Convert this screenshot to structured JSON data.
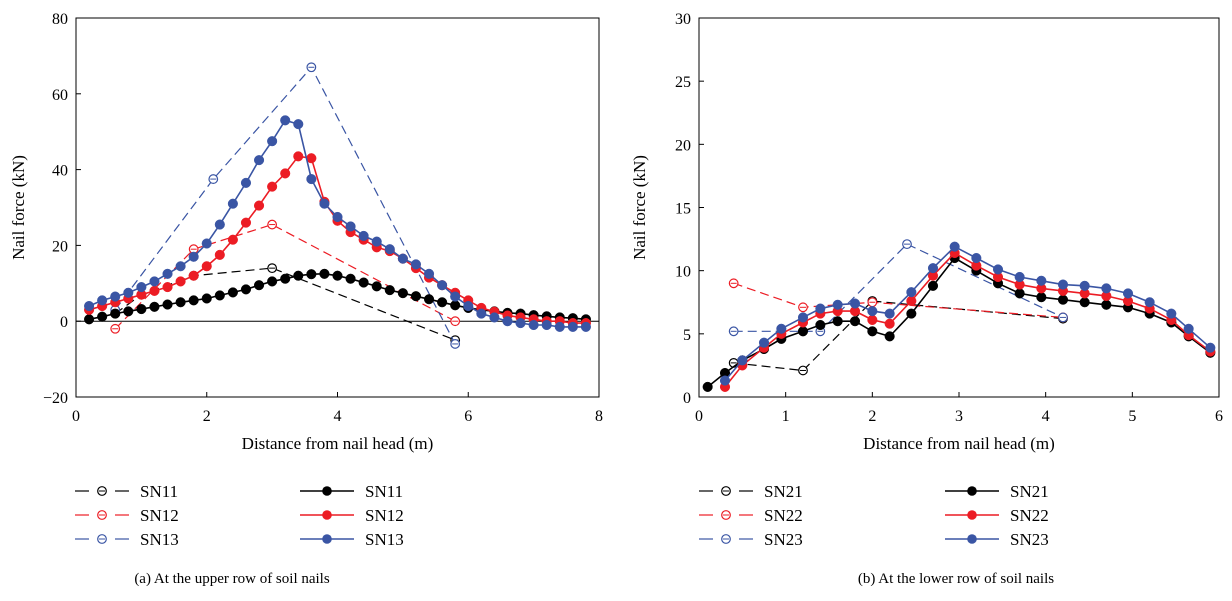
{
  "chart_data": [
    {
      "type": "line",
      "caption": "(a)  At the upper row of soil nails",
      "xlabel": "Distance from nail head (m)",
      "ylabel": "Nail force (kN)",
      "xlim": [
        0,
        8
      ],
      "ylim": [
        -20,
        80
      ],
      "xticks": [
        0,
        2,
        4,
        6,
        8
      ],
      "yticks": [
        -20,
        0,
        20,
        40,
        60,
        80
      ],
      "zero_line": true,
      "legend_placement": "below",
      "series": [
        {
          "name": "SN11",
          "style": "dashed-open",
          "color": "#000000",
          "x": [
            0.6,
            1.0,
            1.8,
            3.0,
            5.8
          ],
          "y": [
            2,
            7,
            12,
            14,
            -5
          ]
        },
        {
          "name": "SN12",
          "style": "dashed-open",
          "color": "#ec1c24",
          "x": [
            0.6,
            1.8,
            3.0,
            5.8
          ],
          "y": [
            -2,
            19,
            25.5,
            0
          ]
        },
        {
          "name": "SN13",
          "style": "dashed-open",
          "color": "#3a55a4",
          "x": [
            0.6,
            2.1,
            3.6,
            5.8
          ],
          "y": [
            3,
            37.5,
            67,
            -6
          ]
        },
        {
          "name": "SN11",
          "style": "solid-filled",
          "color": "#000000",
          "x": [
            0.2,
            0.4,
            0.6,
            0.8,
            1.0,
            1.2,
            1.4,
            1.6,
            1.8,
            2.0,
            2.2,
            2.4,
            2.6,
            2.8,
            3.0,
            3.2,
            3.4,
            3.6,
            3.8,
            4.0,
            4.2,
            4.4,
            4.6,
            4.8,
            5.0,
            5.2,
            5.4,
            5.6,
            5.8,
            6.0,
            6.2,
            6.4,
            6.6,
            6.8,
            7.0,
            7.2,
            7.4,
            7.6,
            7.8
          ],
          "y": [
            0.5,
            1.2,
            2,
            2.6,
            3.2,
            3.8,
            4.4,
            5,
            5.5,
            6,
            6.8,
            7.6,
            8.4,
            9.5,
            10.5,
            11.2,
            12,
            12.4,
            12.5,
            12,
            11.2,
            10.2,
            9.2,
            8.2,
            7.4,
            6.6,
            5.8,
            5,
            4.2,
            3.5,
            3,
            2.6,
            2.2,
            2,
            1.6,
            1.3,
            1,
            0.8,
            0.5
          ]
        },
        {
          "name": "SN12",
          "style": "solid-filled",
          "color": "#ec1c24",
          "x": [
            0.2,
            0.4,
            0.6,
            0.8,
            1.0,
            1.2,
            1.4,
            1.6,
            1.8,
            2.0,
            2.2,
            2.4,
            2.6,
            2.8,
            3.0,
            3.2,
            3.4,
            3.6,
            3.8,
            4.0,
            4.2,
            4.4,
            4.6,
            4.8,
            5.0,
            5.2,
            5.4,
            5.6,
            5.8,
            6.0,
            6.2,
            6.4,
            6.6,
            6.8,
            7.0,
            7.2,
            7.4,
            7.6,
            7.8
          ],
          "y": [
            3,
            4,
            5,
            6,
            7,
            8,
            9,
            10.5,
            12,
            14.5,
            17.5,
            21.5,
            26,
            30.5,
            35.5,
            39,
            43.5,
            43,
            31.5,
            26.5,
            23.5,
            21.5,
            19.5,
            18.5,
            16.5,
            14,
            11.5,
            9.5,
            7.5,
            5.5,
            3.5,
            2.5,
            1.5,
            1,
            0.5,
            0,
            0,
            -0.5,
            -0.5
          ]
        },
        {
          "name": "SN13",
          "style": "solid-filled",
          "color": "#3a55a4",
          "x": [
            0.2,
            0.4,
            0.6,
            0.8,
            1.0,
            1.2,
            1.4,
            1.6,
            1.8,
            2.0,
            2.2,
            2.4,
            2.6,
            2.8,
            3.0,
            3.2,
            3.4,
            3.6,
            3.8,
            4.0,
            4.2,
            4.4,
            4.6,
            4.8,
            5.0,
            5.2,
            5.4,
            5.6,
            5.8,
            6.0,
            6.2,
            6.4,
            6.6,
            6.8,
            7.0,
            7.2,
            7.4,
            7.6,
            7.8
          ],
          "y": [
            4,
            5.5,
            6.5,
            7.5,
            9,
            10.5,
            12.5,
            14.5,
            17,
            20.5,
            25.5,
            31,
            36.5,
            42.5,
            47.5,
            53,
            52,
            37.5,
            31,
            27.5,
            25,
            22.5,
            21,
            19,
            16.5,
            15,
            12.5,
            9.5,
            6.5,
            4,
            2,
            1,
            0,
            -0.5,
            -1,
            -1,
            -1.5,
            -1.5,
            -1.5
          ]
        }
      ]
    },
    {
      "type": "line",
      "caption": "(b)  At the lower row of soil nails",
      "xlabel": "Distance from nail head (m)",
      "ylabel": "Nail force (kN)",
      "xlim": [
        0,
        6
      ],
      "ylim": [
        0,
        30
      ],
      "xticks": [
        0,
        1,
        2,
        3,
        4,
        5,
        6
      ],
      "yticks": [
        0,
        5,
        10,
        15,
        20,
        25,
        30
      ],
      "zero_line": false,
      "legend_placement": "below",
      "series": [
        {
          "name": "SN21",
          "style": "dashed-open",
          "color": "#000000",
          "x": [
            0.4,
            1.2,
            2.0,
            4.2
          ],
          "y": [
            2.7,
            2.1,
            7.6,
            6.2
          ]
        },
        {
          "name": "SN22",
          "style": "dashed-open",
          "color": "#ec1c24",
          "x": [
            0.4,
            1.2,
            2.0,
            4.2
          ],
          "y": [
            9.0,
            7.1,
            7.5,
            6.3
          ]
        },
        {
          "name": "SN23",
          "style": "dashed-open",
          "color": "#3a55a4",
          "x": [
            0.4,
            1.4,
            2.4,
            4.2
          ],
          "y": [
            5.2,
            5.2,
            12.1,
            6.3
          ]
        },
        {
          "name": "SN21",
          "style": "solid-filled",
          "color": "#000000",
          "x": [
            0.1,
            0.3,
            0.5,
            0.75,
            0.95,
            1.2,
            1.4,
            1.6,
            1.8,
            2.0,
            2.2,
            2.45,
            2.7,
            2.95,
            3.2,
            3.45,
            3.7,
            3.95,
            4.2,
            4.45,
            4.7,
            4.95,
            5.2,
            5.45,
            5.65,
            5.9
          ],
          "y": [
            0.8,
            1.9,
            2.9,
            3.8,
            4.6,
            5.2,
            5.7,
            6.0,
            6.0,
            5.2,
            4.8,
            6.6,
            8.8,
            11.0,
            10.0,
            9.0,
            8.2,
            7.9,
            7.7,
            7.5,
            7.3,
            7.1,
            6.6,
            5.9,
            4.8,
            3.5
          ]
        },
        {
          "name": "SN22",
          "style": "solid-filled",
          "color": "#ec1c24",
          "x": [
            0.3,
            0.5,
            0.75,
            0.95,
            1.2,
            1.4,
            1.6,
            1.8,
            2.0,
            2.2,
            2.45,
            2.7,
            2.95,
            3.2,
            3.45,
            3.7,
            3.95,
            4.2,
            4.45,
            4.7,
            4.95,
            5.2,
            5.45,
            5.65,
            5.9
          ],
          "y": [
            0.8,
            2.5,
            3.9,
            5.0,
            5.9,
            6.6,
            6.8,
            6.8,
            6.1,
            5.8,
            7.6,
            9.6,
            11.4,
            10.4,
            9.5,
            8.9,
            8.6,
            8.4,
            8.2,
            8.0,
            7.6,
            7.0,
            6.1,
            4.9,
            3.6
          ]
        },
        {
          "name": "SN23",
          "style": "solid-filled",
          "color": "#3a55a4",
          "x": [
            0.3,
            0.5,
            0.75,
            0.95,
            1.2,
            1.4,
            1.6,
            1.8,
            2.0,
            2.2,
            2.45,
            2.7,
            2.95,
            3.2,
            3.45,
            3.7,
            3.95,
            4.2,
            4.45,
            4.7,
            4.95,
            5.2,
            5.45,
            5.65,
            5.9
          ],
          "y": [
            1.3,
            2.9,
            4.3,
            5.4,
            6.3,
            7.0,
            7.3,
            7.4,
            6.8,
            6.6,
            8.3,
            10.2,
            11.9,
            11.0,
            10.1,
            9.5,
            9.2,
            8.9,
            8.8,
            8.6,
            8.2,
            7.5,
            6.6,
            5.4,
            3.9
          ]
        }
      ]
    }
  ]
}
